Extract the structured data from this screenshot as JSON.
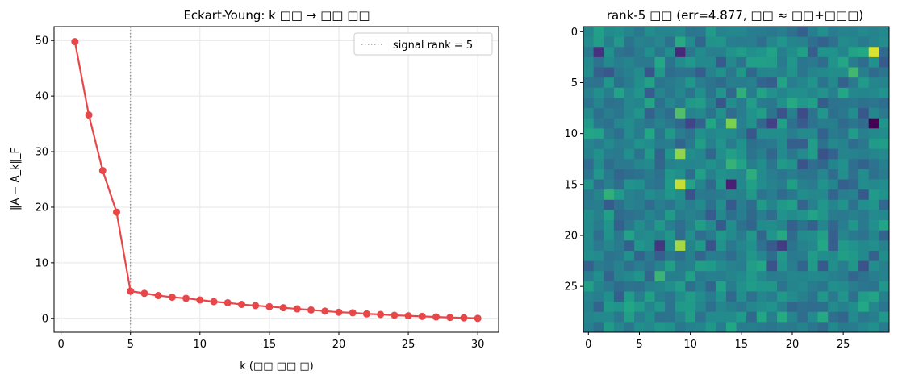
{
  "chart_data": [
    {
      "type": "line",
      "title": "Eckart-Young: k □□ → □□ □□",
      "xlabel": "k (□□ □□ □)",
      "ylabel": "‖A − A_k‖_F",
      "xlim": [
        -0.5,
        31.5
      ],
      "ylim": [
        -2.5,
        52.5
      ],
      "xticks": [
        0,
        5,
        10,
        15,
        20,
        25,
        30
      ],
      "yticks": [
        0,
        10,
        20,
        30,
        40,
        50
      ],
      "grid": true,
      "legend_position": "top-right",
      "colors": {
        "line": "#e8474a",
        "marker": "#e8474a",
        "refline": "#888888"
      },
      "series": [
        {
          "x": [
            1,
            2,
            3,
            4,
            5,
            6,
            7,
            8,
            9,
            10,
            11,
            12,
            13,
            14,
            15,
            16,
            17,
            18,
            19,
            20,
            21,
            22,
            23,
            24,
            25,
            26,
            27,
            28,
            29,
            30
          ],
          "y": [
            49.8,
            36.6,
            26.6,
            19.1,
            4.9,
            4.5,
            4.1,
            3.8,
            3.6,
            3.3,
            3.0,
            2.8,
            2.5,
            2.3,
            2.1,
            1.9,
            1.7,
            1.5,
            1.3,
            1.1,
            1.0,
            0.8,
            0.7,
            0.55,
            0.45,
            0.35,
            0.25,
            0.15,
            0.08,
            0.0
          ]
        }
      ],
      "reference_line": {
        "x": 5,
        "label": "signal rank = 5",
        "style": "dotted"
      }
    },
    {
      "type": "heatmap",
      "title": "rank-5 □□ (err=4.877, □□ ≈ □□+□□□)",
      "rows": 30,
      "cols": 30,
      "xticks": [
        0,
        5,
        10,
        15,
        20,
        25
      ],
      "yticks": [
        0,
        5,
        10,
        15,
        20,
        25
      ],
      "colormap": "viridis",
      "highlights": [
        {
          "row": 2,
          "col": 28,
          "value": 0.97
        },
        {
          "row": 15,
          "col": 9,
          "value": 0.95
        },
        {
          "row": 21,
          "col": 9,
          "value": 0.92
        },
        {
          "row": 12,
          "col": 9,
          "value": 0.9
        },
        {
          "row": 9,
          "col": 14,
          "value": 0.88
        },
        {
          "row": 8,
          "col": 9,
          "value": 0.82
        },
        {
          "row": 9,
          "col": 28,
          "value": 0.0
        },
        {
          "row": 15,
          "col": 14,
          "value": 0.12
        },
        {
          "row": 2,
          "col": 1,
          "value": 0.18
        },
        {
          "row": 2,
          "col": 9,
          "value": 0.15
        },
        {
          "row": 21,
          "col": 7,
          "value": 0.2
        },
        {
          "row": 21,
          "col": 19,
          "value": 0.22
        },
        {
          "row": 9,
          "col": 10,
          "value": 0.25
        },
        {
          "row": 9,
          "col": 18,
          "value": 0.24
        },
        {
          "row": 13,
          "col": 14,
          "value": 0.78
        },
        {
          "row": 13,
          "col": 15,
          "value": 0.72
        },
        {
          "row": 2,
          "col": 27,
          "value": 0.75
        },
        {
          "row": 2,
          "col": 18,
          "value": 0.72
        }
      ]
    }
  ]
}
